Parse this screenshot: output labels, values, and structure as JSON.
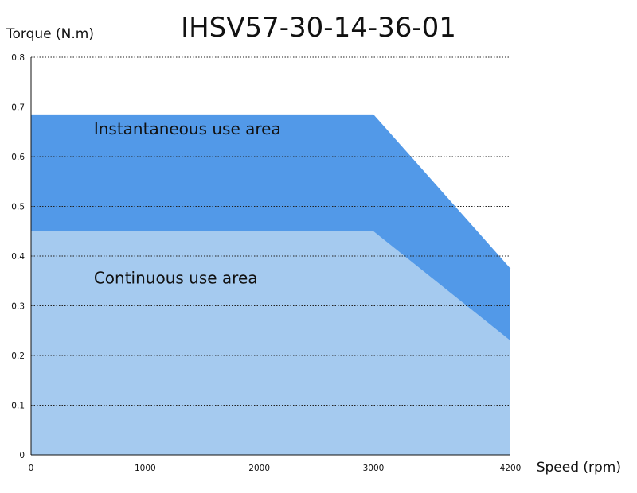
{
  "chart_data": {
    "type": "area",
    "title": "IHSV57-30-14-36-01",
    "xlabel": "Speed (rpm)",
    "ylabel": "Torque (N.m)",
    "xlim": [
      0,
      4200
    ],
    "ylim": [
      0,
      0.8
    ],
    "x_ticks": [
      0,
      1000,
      2000,
      3000,
      4200
    ],
    "y_ticks": [
      0,
      0.1,
      0.2,
      0.3,
      0.4,
      0.5,
      0.6,
      0.7,
      0.8
    ],
    "x_tick_labels": [
      "0",
      "1000",
      "2000",
      "3000",
      "4200"
    ],
    "y_tick_labels": [
      "0",
      "0.1",
      "0.2",
      "0.3",
      "0.4",
      "0.5",
      "0.6",
      "0.7",
      "0.8"
    ],
    "grid": "horizontal dotted",
    "series": [
      {
        "name": "Instantaneous use area",
        "color": "#5299e8",
        "x": [
          0,
          3000,
          4200
        ],
        "y": [
          0.685,
          0.685,
          0.375
        ]
      },
      {
        "name": "Continuous use area",
        "color": "#a5caef",
        "x": [
          0,
          3000,
          4200
        ],
        "y": [
          0.45,
          0.45,
          0.23
        ]
      }
    ],
    "annotations": [
      {
        "text": "Instantaneous use area",
        "x": 550,
        "y": 0.645
      },
      {
        "text": "Continuous use area",
        "x": 550,
        "y": 0.345
      }
    ]
  }
}
